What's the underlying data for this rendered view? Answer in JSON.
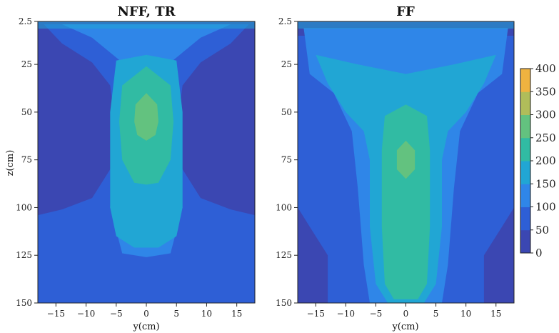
{
  "chart_data": [
    {
      "type": "heatmap",
      "title": "NFF, TR",
      "xlabel": "y(cm)",
      "ylabel": "z(cm)",
      "xlim": [
        -18,
        18
      ],
      "ylim": [
        2.5,
        150
      ],
      "x_ticks": [
        -15,
        -10,
        -5,
        0,
        5,
        10,
        15
      ],
      "y_ticks": [
        2.5,
        25,
        50,
        75,
        100,
        125,
        150
      ],
      "description_levels": "filled contour of field intensity; center hot spot ~250-300 near y=0, z=40-65",
      "contours": [
        {
          "level": 50,
          "points": [
            [
              -17,
              4
            ],
            [
              -14,
              14
            ],
            [
              -9,
              24
            ],
            [
              -6,
              36
            ],
            [
              -5,
              60
            ],
            [
              -6,
              80
            ],
            [
              -9,
              95
            ],
            [
              -14,
              101
            ],
            [
              -18,
              104
            ],
            [
              -18,
              150
            ],
            [
              18,
              150
            ],
            [
              18,
              104
            ],
            [
              14,
              101
            ],
            [
              9,
              95
            ],
            [
              6,
              80
            ],
            [
              5,
              60
            ],
            [
              6,
              36
            ],
            [
              9,
              24
            ],
            [
              14,
              14
            ],
            [
              17,
              4
            ]
          ]
        },
        {
          "level": 100,
          "points": [
            [
              -14,
              4
            ],
            [
              -9,
              11
            ],
            [
              -4,
              24
            ],
            [
              -5,
              40
            ],
            [
              -5,
              70
            ],
            [
              -6,
              100
            ],
            [
              -4,
              124
            ],
            [
              0,
              126
            ],
            [
              4,
              124
            ],
            [
              6,
              100
            ],
            [
              5,
              70
            ],
            [
              5,
              40
            ],
            [
              4,
              24
            ],
            [
              9,
              11
            ],
            [
              14,
              4
            ]
          ]
        },
        {
          "level": 150,
          "points": [
            [
              -5,
              23
            ],
            [
              -6,
              50
            ],
            [
              -6,
              80
            ],
            [
              -6,
              100
            ],
            [
              -5,
              115
            ],
            [
              -2,
              121
            ],
            [
              2,
              121
            ],
            [
              5,
              115
            ],
            [
              6,
              100
            ],
            [
              6,
              80
            ],
            [
              6,
              50
            ],
            [
              5,
              23
            ],
            [
              0,
              20
            ]
          ]
        },
        {
          "level": 200,
          "points": [
            [
              0,
              26
            ],
            [
              -4,
              36
            ],
            [
              -4.5,
              55
            ],
            [
              -4,
              75
            ],
            [
              -2,
              87
            ],
            [
              0,
              88
            ],
            [
              2,
              87
            ],
            [
              4,
              75
            ],
            [
              4.5,
              55
            ],
            [
              4,
              36
            ]
          ]
        },
        {
          "level": 250,
          "points": [
            [
              0,
              40
            ],
            [
              -1.8,
              46
            ],
            [
              -2,
              55
            ],
            [
              -1.5,
              62
            ],
            [
              0,
              65
            ],
            [
              1.5,
              62
            ],
            [
              2,
              55
            ],
            [
              1.8,
              46
            ]
          ]
        }
      ]
    },
    {
      "type": "heatmap",
      "title": "FF",
      "xlabel": "y(cm)",
      "ylabel": "",
      "xlim": [
        -18,
        18
      ],
      "ylim": [
        2.5,
        150
      ],
      "x_ticks": [
        -15,
        -10,
        -5,
        0,
        5,
        10,
        15
      ],
      "y_ticks": [
        2.5,
        25,
        50,
        75,
        100,
        125,
        150
      ],
      "contours": [
        {
          "level": 50,
          "points": [
            [
              -18,
              10
            ],
            [
              -18,
              100
            ],
            [
              -16,
              110
            ],
            [
              -13,
              125
            ],
            [
              -13,
              150
            ],
            [
              13,
              150
            ],
            [
              13,
              125
            ],
            [
              16,
              110
            ],
            [
              18,
              100
            ],
            [
              18,
              10
            ]
          ]
        },
        {
          "level": 100,
          "points": [
            [
              -17,
              6
            ],
            [
              -16,
              30
            ],
            [
              -12,
              40
            ],
            [
              -9,
              60
            ],
            [
              -8,
              90
            ],
            [
              -7,
              130
            ],
            [
              -6,
              150
            ],
            [
              6,
              150
            ],
            [
              7,
              130
            ],
            [
              8,
              90
            ],
            [
              9,
              60
            ],
            [
              12,
              40
            ],
            [
              16,
              30
            ],
            [
              17,
              6
            ]
          ]
        },
        {
          "level": 150,
          "points": [
            [
              -15,
              20
            ],
            [
              -13,
              35
            ],
            [
              -10,
              50
            ],
            [
              -7,
              60
            ],
            [
              -6,
              75
            ],
            [
              -6,
              110
            ],
            [
              -5,
              140
            ],
            [
              -3,
              150
            ],
            [
              3,
              150
            ],
            [
              5,
              140
            ],
            [
              6,
              110
            ],
            [
              6,
              75
            ],
            [
              7,
              60
            ],
            [
              10,
              50
            ],
            [
              13,
              35
            ],
            [
              15,
              20
            ],
            [
              8,
              25
            ],
            [
              0,
              30
            ],
            [
              -8,
              25
            ]
          ]
        },
        {
          "level": 200,
          "points": [
            [
              0,
              46
            ],
            [
              -3.5,
              52
            ],
            [
              -4,
              70
            ],
            [
              -4,
              110
            ],
            [
              -3.5,
              140
            ],
            [
              -2,
              148
            ],
            [
              2,
              148
            ],
            [
              3.5,
              140
            ],
            [
              4,
              110
            ],
            [
              4,
              70
            ],
            [
              3.5,
              52
            ]
          ]
        },
        {
          "level": 250,
          "points": [
            [
              0,
              65
            ],
            [
              -1.5,
              70
            ],
            [
              -1.5,
              80
            ],
            [
              0,
              85
            ],
            [
              1.5,
              80
            ],
            [
              1.5,
              70
            ]
          ]
        }
      ]
    },
    {
      "type": "colorbar",
      "ticks": [
        0,
        50,
        100,
        150,
        200,
        250,
        300,
        350,
        400
      ],
      "colors": [
        "#3b47b2",
        "#2e5fd6",
        "#2f86e8",
        "#21a6d4",
        "#31bba3",
        "#63c27f",
        "#b0bd5a",
        "#efb340",
        "#f5e024"
      ]
    }
  ]
}
